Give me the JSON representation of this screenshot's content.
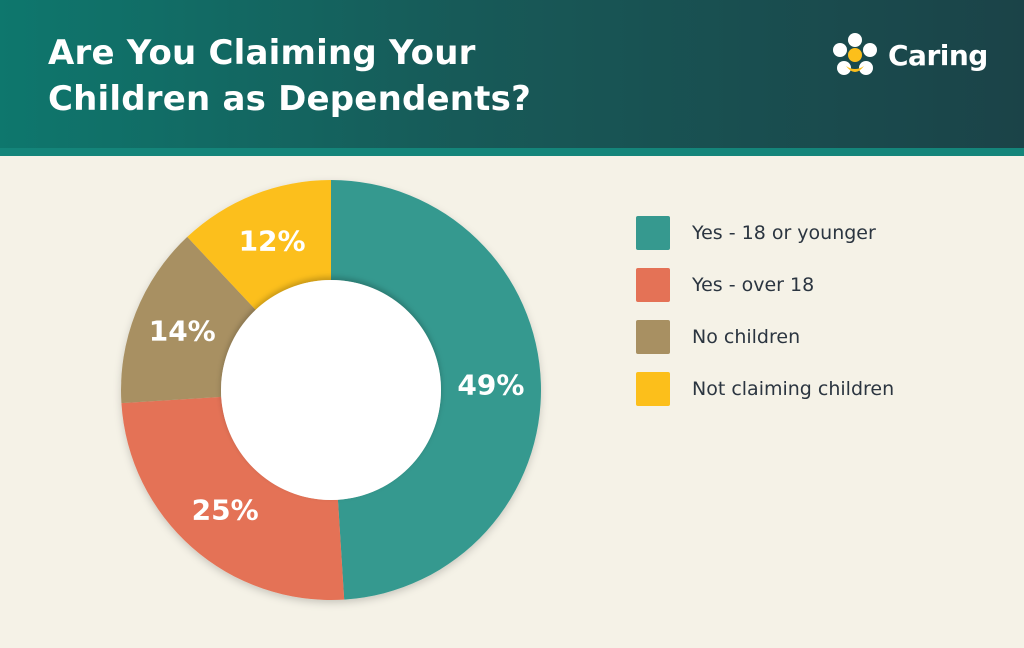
{
  "header": {
    "title_line1": "Are You Claiming Your",
    "title_line2": "Children as Dependents?",
    "brand": "Caring"
  },
  "colors": {
    "header_bg": "#175a58",
    "background": "#f5f2e7",
    "text": "#2b3540"
  },
  "chart_data": {
    "type": "pie",
    "donut": true,
    "title": "Are You Claiming Your Children as Dependents?",
    "categories": [
      "Yes - 18 or younger",
      "Yes - over 18",
      "No children",
      "Not claiming children"
    ],
    "values": [
      49,
      25,
      14,
      12
    ],
    "labels": [
      "49%",
      "25%",
      "14%",
      "12%"
    ],
    "colors": [
      "#36998f",
      "#e47256",
      "#a89062",
      "#fcbf1b"
    ],
    "legend_position": "right"
  }
}
